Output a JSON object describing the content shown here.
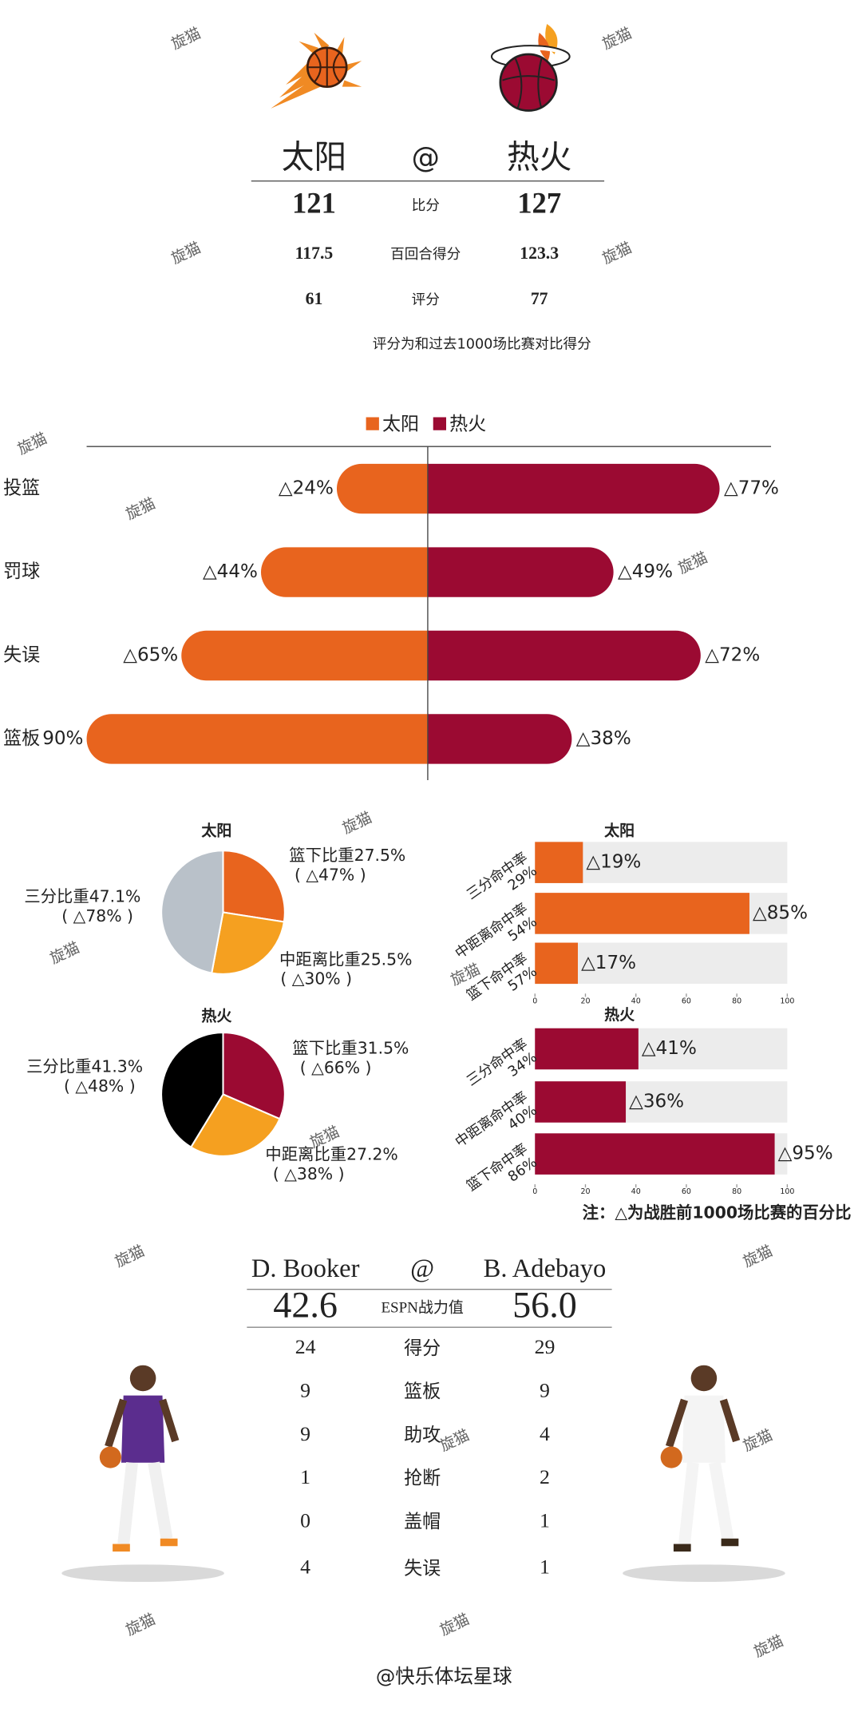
{
  "watermark": "旋猫",
  "header": {
    "home": "太阳",
    "at": "@",
    "away": "热火",
    "rows": [
      {
        "label": "比分",
        "home": 121,
        "away": 127
      },
      {
        "label": "百回合得分",
        "home": 117.5,
        "away": 123.3
      },
      {
        "label": "评分",
        "home": 61,
        "away": 77
      }
    ],
    "note": "评分为和过去1000场比赛对比得分"
  },
  "chart_data": [
    {
      "type": "diverging-bar",
      "categories": [
        "投篮",
        "罚球",
        "失误",
        "篮板"
      ],
      "series": [
        {
          "name": "太阳",
          "color": "#e8641e",
          "values": [
            24,
            44,
            65,
            90
          ],
          "value_labels": [
            "△24%",
            "△44%",
            "△65%",
            "90%"
          ]
        },
        {
          "name": "热火",
          "color": "#9b0a32",
          "values": [
            77,
            49,
            72,
            38
          ],
          "value_labels": [
            "△77%",
            "△49%",
            "△72%",
            "△38%"
          ]
        }
      ],
      "xlim": [
        0,
        100
      ]
    },
    {
      "type": "pie",
      "title": "太阳",
      "categories": [
        "篮下比重",
        "中距离比重",
        "三分比重"
      ],
      "values": [
        27.5,
        25.5,
        47.1
      ],
      "value_labels": [
        "27.5%",
        "25.5%",
        "47.1%"
      ],
      "annotations": [
        "( △47% )",
        "( △30% )",
        "( △78% )"
      ],
      "colors": [
        "#e8641e",
        "#f5a020",
        "#b9c1c9"
      ]
    },
    {
      "type": "bar",
      "title": "太阳",
      "categories": [
        "三分命中率",
        "中距离命中率",
        "篮下命中率"
      ],
      "category_sublabels": [
        "29%",
        "54%",
        "57%"
      ],
      "values": [
        19,
        85,
        17
      ],
      "value_labels": [
        "△19%",
        "△85%",
        "△17%"
      ],
      "color": "#e8641e",
      "background_color": "#ececec",
      "xlim": [
        0,
        100
      ],
      "xticks": [
        0,
        20,
        40,
        60,
        80,
        100
      ]
    },
    {
      "type": "pie",
      "title": "热火",
      "categories": [
        "篮下比重",
        "中距离比重",
        "三分比重"
      ],
      "values": [
        31.5,
        27.2,
        41.3
      ],
      "value_labels": [
        "31.5%",
        "27.2%",
        "41.3%"
      ],
      "annotations": [
        "( △66% )",
        "( △38% )",
        "( △48% )"
      ],
      "colors": [
        "#9b0a32",
        "#f5a020",
        "#000000"
      ]
    },
    {
      "type": "bar",
      "title": "热火",
      "categories": [
        "三分命中率",
        "中距离命中率",
        "篮下命中率"
      ],
      "category_sublabels": [
        "34%",
        "40%",
        "86%"
      ],
      "values": [
        41,
        36,
        95
      ],
      "value_labels": [
        "△41%",
        "△36%",
        "△95%"
      ],
      "color": "#9b0a32",
      "background_color": "#ececec",
      "xlim": [
        0,
        100
      ],
      "xticks": [
        0,
        20,
        40,
        60,
        80,
        100
      ]
    }
  ],
  "footnote": "注：△为战胜前1000场比赛的百分比",
  "players": {
    "home": "D. Booker",
    "at": "@",
    "away": "B. Adebayo",
    "rating": {
      "label": "ESPN战力值",
      "home": "42.6",
      "away": "56.0"
    },
    "rows": [
      {
        "label": "得分",
        "home": 24,
        "away": 29
      },
      {
        "label": "篮板",
        "home": 9,
        "away": 9
      },
      {
        "label": "助攻",
        "home": 9,
        "away": 4
      },
      {
        "label": "抢断",
        "home": 1,
        "away": 2
      },
      {
        "label": "盖帽",
        "home": 0,
        "away": 1
      },
      {
        "label": "失误",
        "home": 4,
        "away": 1
      }
    ]
  },
  "signature": "@快乐体坛星球"
}
